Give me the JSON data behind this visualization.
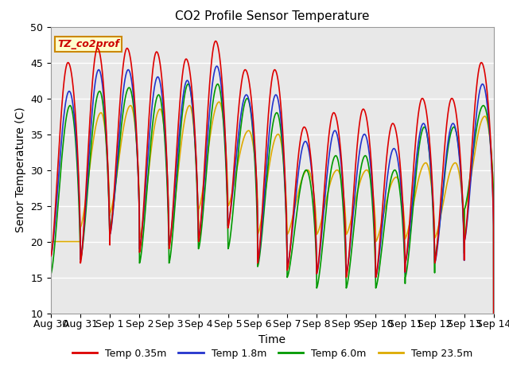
{
  "title": "CO2 Profile Sensor Temperature",
  "xlabel": "Time",
  "ylabel": "Senor Temperature (C)",
  "ylim": [
    10,
    50
  ],
  "xlim": [
    0,
    15
  ],
  "bg_color": "#e8e8e8",
  "fig_color": "#ffffff",
  "annotation_text": "TZ_co2prof",
  "annotation_bg": "#ffffcc",
  "annotation_border": "#cc8800",
  "annotation_text_color": "#cc0000",
  "x_tick_labels": [
    "Aug 30",
    "Aug 31",
    "Sep 1",
    "Sep 2",
    "Sep 3",
    "Sep 4",
    "Sep 5",
    "Sep 6",
    "Sep 7",
    "Sep 8",
    "Sep 9",
    "Sep 10",
    "Sep 11",
    "Sep 12",
    "Sep 13",
    "Sep 14"
  ],
  "colors": {
    "red": "#dd0000",
    "blue": "#2233cc",
    "green": "#009900",
    "orange": "#ddaa00"
  },
  "legend_labels": [
    "Temp 0.35m",
    "Temp 1.8m",
    "Temp 6.0m",
    "Temp 23.5m"
  ],
  "line_width": 1.2,
  "red_peaks": [
    45,
    47,
    47,
    46.5,
    45.5,
    48,
    44,
    44,
    36,
    38,
    38.5,
    36.5,
    40,
    40,
    45
  ],
  "red_troughs": [
    18,
    17,
    21,
    18.5,
    19,
    20,
    22,
    17,
    16,
    15.5,
    15,
    15,
    17,
    17,
    20
  ],
  "blue_peaks": [
    41,
    44,
    44,
    43,
    42.5,
    44.5,
    40.5,
    40.5,
    34,
    35.5,
    35,
    33,
    36.5,
    36.5,
    42
  ],
  "blue_troughs": [
    18,
    17.5,
    21,
    19,
    19.5,
    20.5,
    22.5,
    17,
    16.5,
    15.5,
    15.5,
    15,
    17,
    17,
    20
  ],
  "green_peaks": [
    39,
    41,
    41.5,
    40.5,
    42,
    42,
    40,
    38,
    30,
    32,
    32,
    30,
    36,
    36,
    39
  ],
  "green_troughs": [
    15.5,
    17.5,
    22,
    17,
    17,
    19,
    19,
    16.5,
    15,
    13.5,
    13.5,
    13.5,
    15,
    18,
    24.5
  ],
  "orange_peaks": [
    20,
    38,
    39,
    38.5,
    39,
    39.5,
    35.5,
    35,
    30,
    30,
    30,
    29,
    31,
    31,
    37.5
  ],
  "orange_troughs": [
    20,
    22,
    24,
    20.5,
    20,
    24.5,
    25,
    21,
    21,
    21,
    21,
    20,
    20.5,
    20.5,
    24.5
  ]
}
